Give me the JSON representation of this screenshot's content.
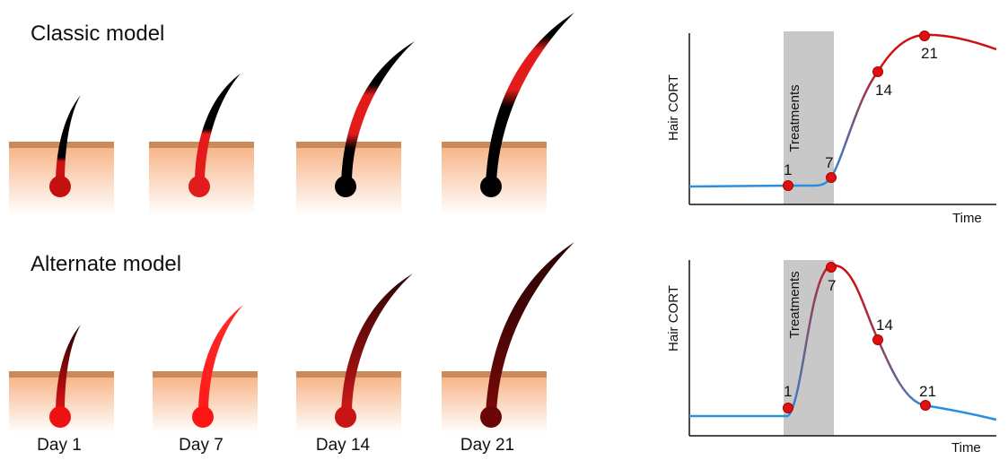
{
  "classic": {
    "title": "Classic model",
    "chart_ylabel": "Hair CORT",
    "chart_xlabel": "Time",
    "treatment_label": "Treatments",
    "points": [
      "1",
      "7",
      "14",
      "21"
    ]
  },
  "alternate": {
    "title": "Alternate model",
    "chart_ylabel": "Hair CORT",
    "chart_xlabel": "Time",
    "treatment_label": "Treatments",
    "points": [
      "1",
      "7",
      "14",
      "21"
    ]
  },
  "days": [
    "Day 1",
    "Day 7",
    "Day 14",
    "Day 21"
  ],
  "colors": {
    "skin_top": "#c98a5c",
    "skin_body": "#f6c9a3",
    "low_cort": "#2a8fe0",
    "high_cort": "#cc1111",
    "treatment_band": "#c8c8c8",
    "marker": "#e01010"
  }
}
